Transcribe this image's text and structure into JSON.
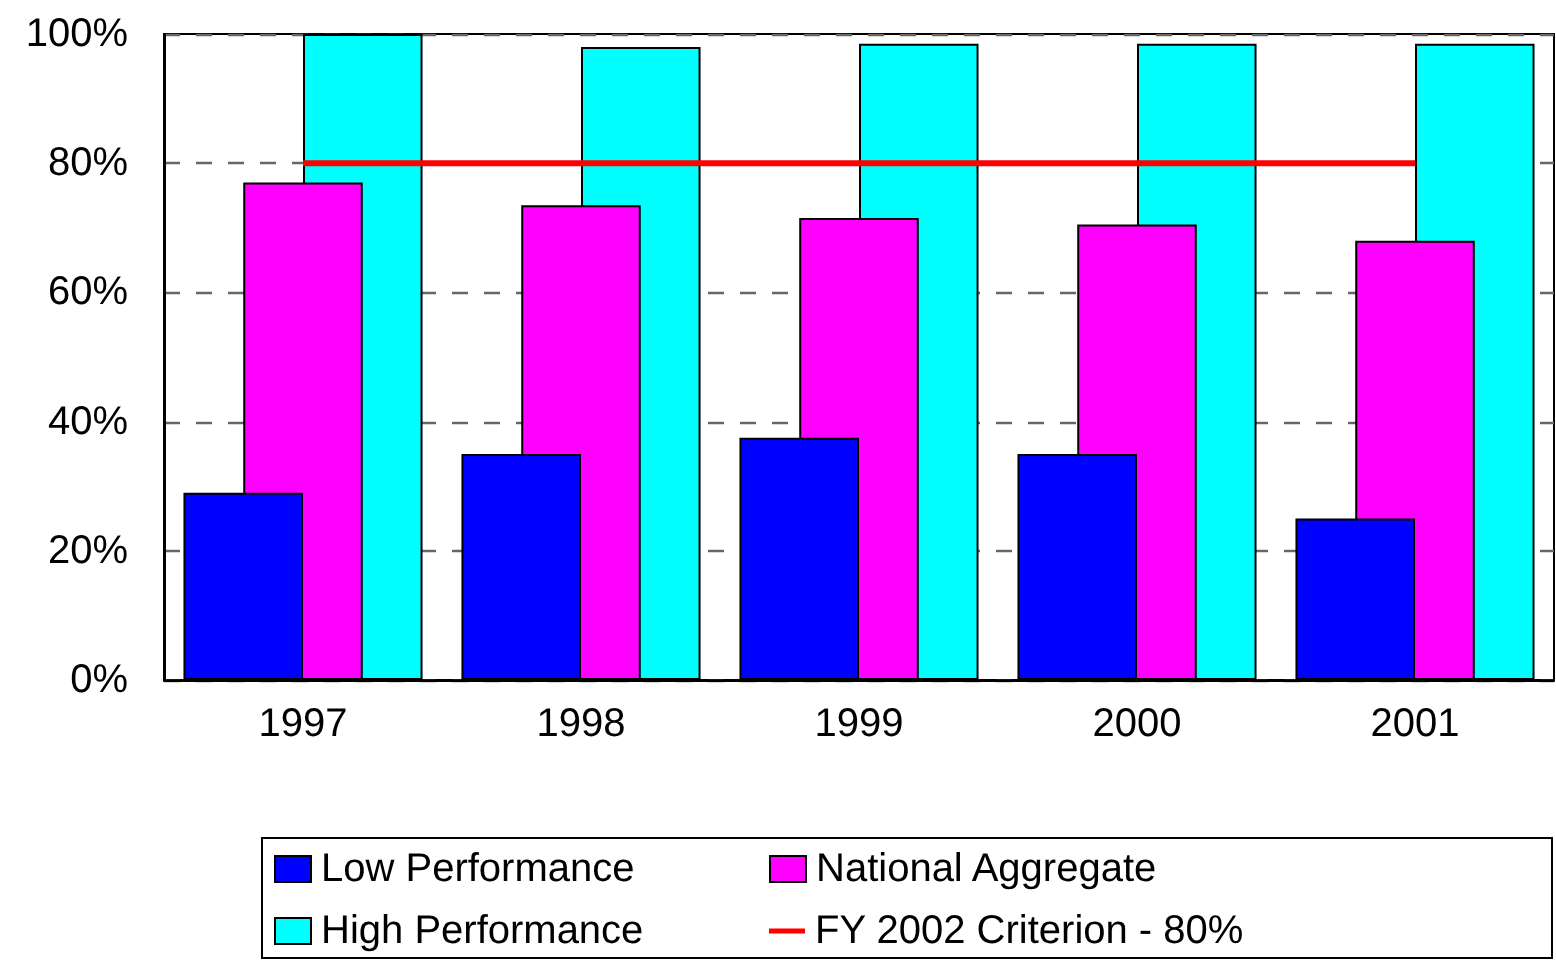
{
  "chart_data": {
    "type": "bar",
    "categories": [
      "1997",
      "1998",
      "1999",
      "2000",
      "2001"
    ],
    "series": [
      {
        "name": "Low Performance",
        "color": "#0000ff",
        "values": [
          29,
          35,
          37.5,
          35,
          25
        ]
      },
      {
        "name": "National Aggregate",
        "color": "#ff00ff",
        "values": [
          77,
          73.5,
          71.5,
          70.5,
          68
        ]
      },
      {
        "name": "High Performance",
        "color": "#00ffff",
        "values": [
          100,
          98,
          98.5,
          98.5,
          98.5
        ]
      },
      {
        "name": "FY 2002 Criterion - 80%",
        "type": "line",
        "color": "#ff0000",
        "values": [
          80,
          80,
          80,
          80,
          80
        ]
      }
    ],
    "ylim": [
      0,
      100
    ],
    "yticks": [
      {
        "value": 0,
        "label": "0%"
      },
      {
        "value": 20,
        "label": "20%"
      },
      {
        "value": 40,
        "label": "40%"
      },
      {
        "value": 60,
        "label": "60%"
      },
      {
        "value": 80,
        "label": "80%"
      },
      {
        "value": 100,
        "label": "100%"
      }
    ],
    "grid": "y",
    "legend": "bottom",
    "marker": "none",
    "line_style": "solid"
  }
}
